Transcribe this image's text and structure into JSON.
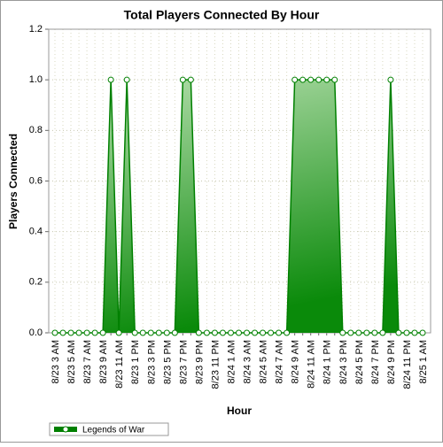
{
  "chart_data": {
    "type": "area",
    "title": "Total Players Connected By Hour",
    "x_label": "Hour",
    "y_label": "Players Connected",
    "categories": [
      "8/23 3 AM",
      null,
      "8/23 5 AM",
      null,
      "8/23 7 AM",
      null,
      "8/23 9 AM",
      null,
      "8/23 11 AM",
      null,
      "8/23 1 PM",
      null,
      "8/23 3 PM",
      null,
      "8/23 5 PM",
      null,
      "8/23 7 PM",
      null,
      "8/23 9 PM",
      null,
      "8/23 11 PM",
      null,
      "8/24 1 AM",
      null,
      "8/24 3 AM",
      null,
      "8/24 5 AM",
      null,
      "8/24 7 AM",
      null,
      "8/24 9 AM",
      null,
      "8/24 11 AM",
      null,
      "8/24 1 PM",
      null,
      "8/24 3 PM",
      null,
      "8/24 5 PM",
      null,
      "8/24 7 PM",
      null,
      "8/24 9 PM",
      null,
      "8/24 11 PM",
      null,
      "8/25 1 AM"
    ],
    "series": [
      {
        "name": "Legends of War",
        "color": "#008000",
        "values": [
          0,
          0,
          0,
          0,
          0,
          0,
          0,
          1,
          0,
          1,
          0,
          0,
          0,
          0,
          0,
          0,
          1,
          1,
          0,
          0,
          0,
          0,
          0,
          0,
          0,
          0,
          0,
          0,
          0,
          0,
          1,
          1,
          1,
          1,
          1,
          1,
          0,
          0,
          0,
          0,
          0,
          0,
          1,
          0,
          0,
          0,
          0
        ]
      }
    ],
    "ylim": [
      0,
      1.2
    ],
    "yticks": [
      {
        "value": 0,
        "label": "0.0"
      },
      0.2,
      0.4,
      0.6,
      0.8,
      {
        "value": 1,
        "label": "1.0"
      },
      1.2
    ],
    "grid": true,
    "legend": "bottom-left"
  }
}
